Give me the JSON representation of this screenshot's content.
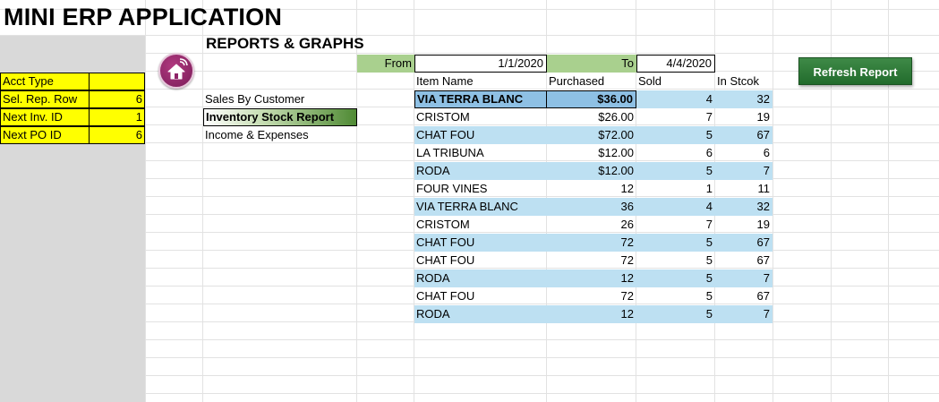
{
  "app": {
    "title": "MINI ERP APPLICATION",
    "section": "REPORTS & GRAPHS"
  },
  "side": {
    "rows": [
      {
        "label": "Acct Type",
        "value": ""
      },
      {
        "label": "Sel. Rep. Row",
        "value": "6"
      },
      {
        "label": "Next Inv. ID",
        "value": "1"
      },
      {
        "label": "Next PO ID",
        "value": "6"
      }
    ]
  },
  "menu": {
    "items": [
      {
        "label": "Sales By Customer"
      },
      {
        "label": "Inventory Stock Report"
      },
      {
        "label": "Income & Expenses"
      }
    ]
  },
  "date": {
    "from_label": "From",
    "from_value": "1/1/2020",
    "to_label": "To",
    "to_value": "4/4/2020"
  },
  "refresh_label": "Refresh Report",
  "table": {
    "headers": [
      "Item Name",
      "Purchased",
      "Sold",
      "In Stcok"
    ],
    "rows": [
      {
        "name": "VIA TERRA BLANC",
        "purchased": "$36.00",
        "sold": "4",
        "stock": "32"
      },
      {
        "name": "CRISTOM",
        "purchased": "$26.00",
        "sold": "7",
        "stock": "19"
      },
      {
        "name": "CHAT FOU",
        "purchased": "$72.00",
        "sold": "5",
        "stock": "67"
      },
      {
        "name": "LA TRIBUNA",
        "purchased": "$12.00",
        "sold": "6",
        "stock": "6"
      },
      {
        "name": "RODA",
        "purchased": "$12.00",
        "sold": "5",
        "stock": "7"
      },
      {
        "name": "FOUR VINES",
        "purchased": "12",
        "sold": "1",
        "stock": "11"
      },
      {
        "name": "VIA TERRA BLANC",
        "purchased": "36",
        "sold": "4",
        "stock": "32"
      },
      {
        "name": "CRISTOM",
        "purchased": "26",
        "sold": "7",
        "stock": "19"
      },
      {
        "name": "CHAT FOU",
        "purchased": "72",
        "sold": "5",
        "stock": "67"
      },
      {
        "name": "CHAT FOU",
        "purchased": "72",
        "sold": "5",
        "stock": "67"
      },
      {
        "name": "RODA",
        "purchased": "12",
        "sold": "5",
        "stock": "7"
      },
      {
        "name": "CHAT FOU",
        "purchased": "72",
        "sold": "5",
        "stock": "67"
      },
      {
        "name": "RODA",
        "purchased": "12",
        "sold": "5",
        "stock": "7"
      }
    ]
  },
  "colors": {
    "side_yellow": "#ffff00",
    "date_green": "#a9d08e",
    "row_blue": "#bde0f2",
    "refresh_green": "#2f7a38",
    "home_purple": "#8e2468"
  },
  "icons": {
    "home": "home-icon",
    "wifi": "wifi-icon"
  }
}
